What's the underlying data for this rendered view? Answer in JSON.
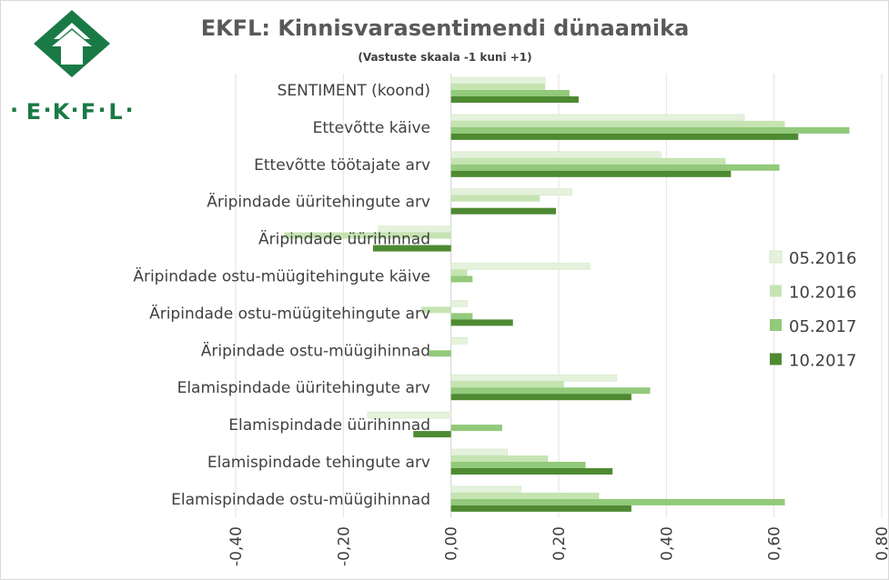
{
  "title": "EKFL: Kinnisvarasentimendi dünaamika",
  "subtitle": "(Vastuste skaala -1 kuni +1)",
  "logo": {
    "letters": [
      "E",
      "K",
      "F",
      "L"
    ],
    "color": "#1a7a45"
  },
  "colors": [
    "#e4f2dc",
    "#c5e4b2",
    "#92c97a",
    "#4e8a32"
  ],
  "chart_data": {
    "type": "bar",
    "orientation": "horizontal",
    "categories": [
      "SENTIMENT (koond)",
      "Ettevõtte käive",
      "Ettevõtte töötajate arv",
      "Äripindade üüritehingute arv",
      "Äripindade üürihinnad",
      "Äripindade ostu-müügitehingute käive",
      "Äripindade ostu-müügitehingute arv",
      "Äripindade ostu-müügihinnad",
      "Elamispindade üüritehingute arv",
      "Elamispindade üürihinnad",
      "Elamispindade tehingute arv",
      "Elamispindade ostu-müügihinnad"
    ],
    "series": [
      {
        "name": "05.2016",
        "values": [
          0.175,
          0.545,
          0.39,
          0.225,
          -0.135,
          0.258,
          0.03,
          0.03,
          0.308,
          -0.155,
          0.105,
          0.13
        ]
      },
      {
        "name": "10.2016",
        "values": [
          0.175,
          0.62,
          0.51,
          0.165,
          -0.31,
          0.03,
          -0.055,
          0.0,
          0.21,
          0.0,
          0.18,
          0.275
        ]
      },
      {
        "name": "05.2017",
        "values": [
          0.22,
          0.74,
          0.61,
          0.0,
          0.0,
          0.04,
          0.04,
          -0.04,
          0.37,
          0.095,
          0.25,
          0.62
        ]
      },
      {
        "name": "10.2017",
        "values": [
          0.237,
          0.645,
          0.52,
          0.195,
          -0.145,
          0.0,
          0.115,
          0.0,
          0.335,
          -0.07,
          0.3,
          0.335
        ]
      }
    ],
    "xlim": [
      -0.4,
      0.8
    ],
    "xticks": [
      "-0,40",
      "-0,20",
      "0,00",
      "0,20",
      "0,40",
      "0,60",
      "0,80"
    ],
    "grid": true,
    "legend_position": "right"
  }
}
